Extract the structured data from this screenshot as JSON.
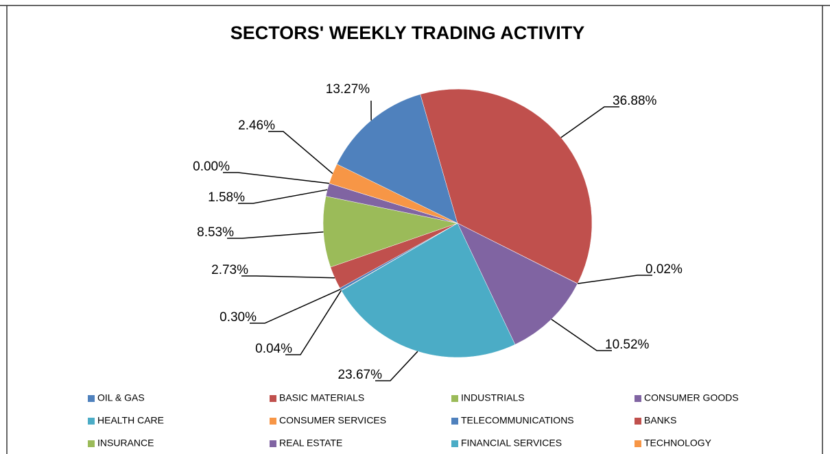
{
  "chart_data": {
    "type": "pie",
    "title": "SECTORS' WEEKLY TRADING ACTIVITY",
    "categories": [
      "OIL & GAS",
      "BASIC MATERIALS",
      "INDUSTRIALS",
      "CONSUMER GOODS",
      "HEALTH CARE",
      "CONSUMER SERVICES",
      "TELECOMMUNICATIONS",
      "BANKS",
      "INSURANCE",
      "REAL ESTATE",
      "FINANCIAL SERVICES",
      "TECHNOLOGY"
    ],
    "values": [
      0.3,
      2.73,
      8.53,
      1.58,
      0.0,
      2.46,
      13.27,
      36.88,
      0.02,
      10.52,
      23.67,
      0.04
    ],
    "value_labels": [
      "0.30%",
      "2.73%",
      "8.53%",
      "1.58%",
      "0.00%",
      "2.46%",
      "13.27%",
      "36.88%",
      "0.02%",
      "10.52%",
      "23.67%",
      "0.04%"
    ],
    "colors": [
      "#4f81bd",
      "#c0504d",
      "#9bbb59",
      "#8064a2",
      "#4bacc6",
      "#f79646",
      "#4f81bd",
      "#c0504d",
      "#9bbb59",
      "#8064a2",
      "#4bacc6",
      "#f79646"
    ],
    "legend": "bottom"
  }
}
